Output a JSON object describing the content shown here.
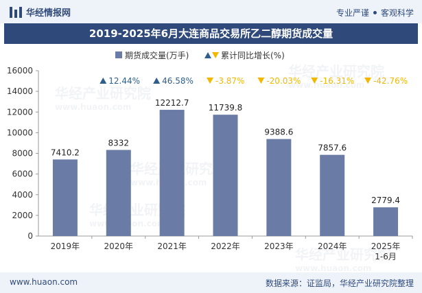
{
  "header": {
    "brand": "华经情报网",
    "tagline_a": "专业严谨",
    "tagline_b": "客观科学"
  },
  "footer": {
    "website": "www.huaon.com",
    "source": "数据来源：证监局，华经产业研究院整理"
  },
  "watermark": {
    "text": "华经产业研究院",
    "url": "www.huaon.com"
  },
  "colors": {
    "bar": "#6a7ca6",
    "up": "#2f5e8a",
    "down": "#f2b700",
    "title_band": "#2f4a7a"
  },
  "chart_data": {
    "type": "bar",
    "title": "2019-2025年6月大连商品交易所乙二醇期货成交量",
    "xlabel": "",
    "ylabel": "",
    "ylim": [
      0,
      16000
    ],
    "yticks": [
      0,
      2000,
      4000,
      6000,
      8000,
      10000,
      12000,
      14000,
      16000
    ],
    "grid": false,
    "legend_position": "top-center",
    "categories": [
      "2019年",
      "2020年",
      "2021年",
      "2022年",
      "2023年",
      "2024年",
      "2025年\n1-6月"
    ],
    "series": [
      {
        "name": "期货成交量(万手)",
        "values": [
          7410.2,
          8332,
          12212.7,
          11739.8,
          9388.6,
          7857.6,
          2779.4
        ],
        "labels": [
          "7410.2",
          "8332",
          "12212.7",
          "11739.8",
          "9388.6",
          "7857.6",
          "2779.4"
        ]
      },
      {
        "name": "累计同比增长(%)",
        "values": [
          null,
          12.44,
          46.58,
          -3.87,
          -20.03,
          -16.31,
          -42.76
        ],
        "labels": [
          "",
          "12.44%",
          "46.58%",
          "-3.87%",
          "-20.03%",
          "-16.31%",
          "-42.76%"
        ]
      }
    ]
  }
}
